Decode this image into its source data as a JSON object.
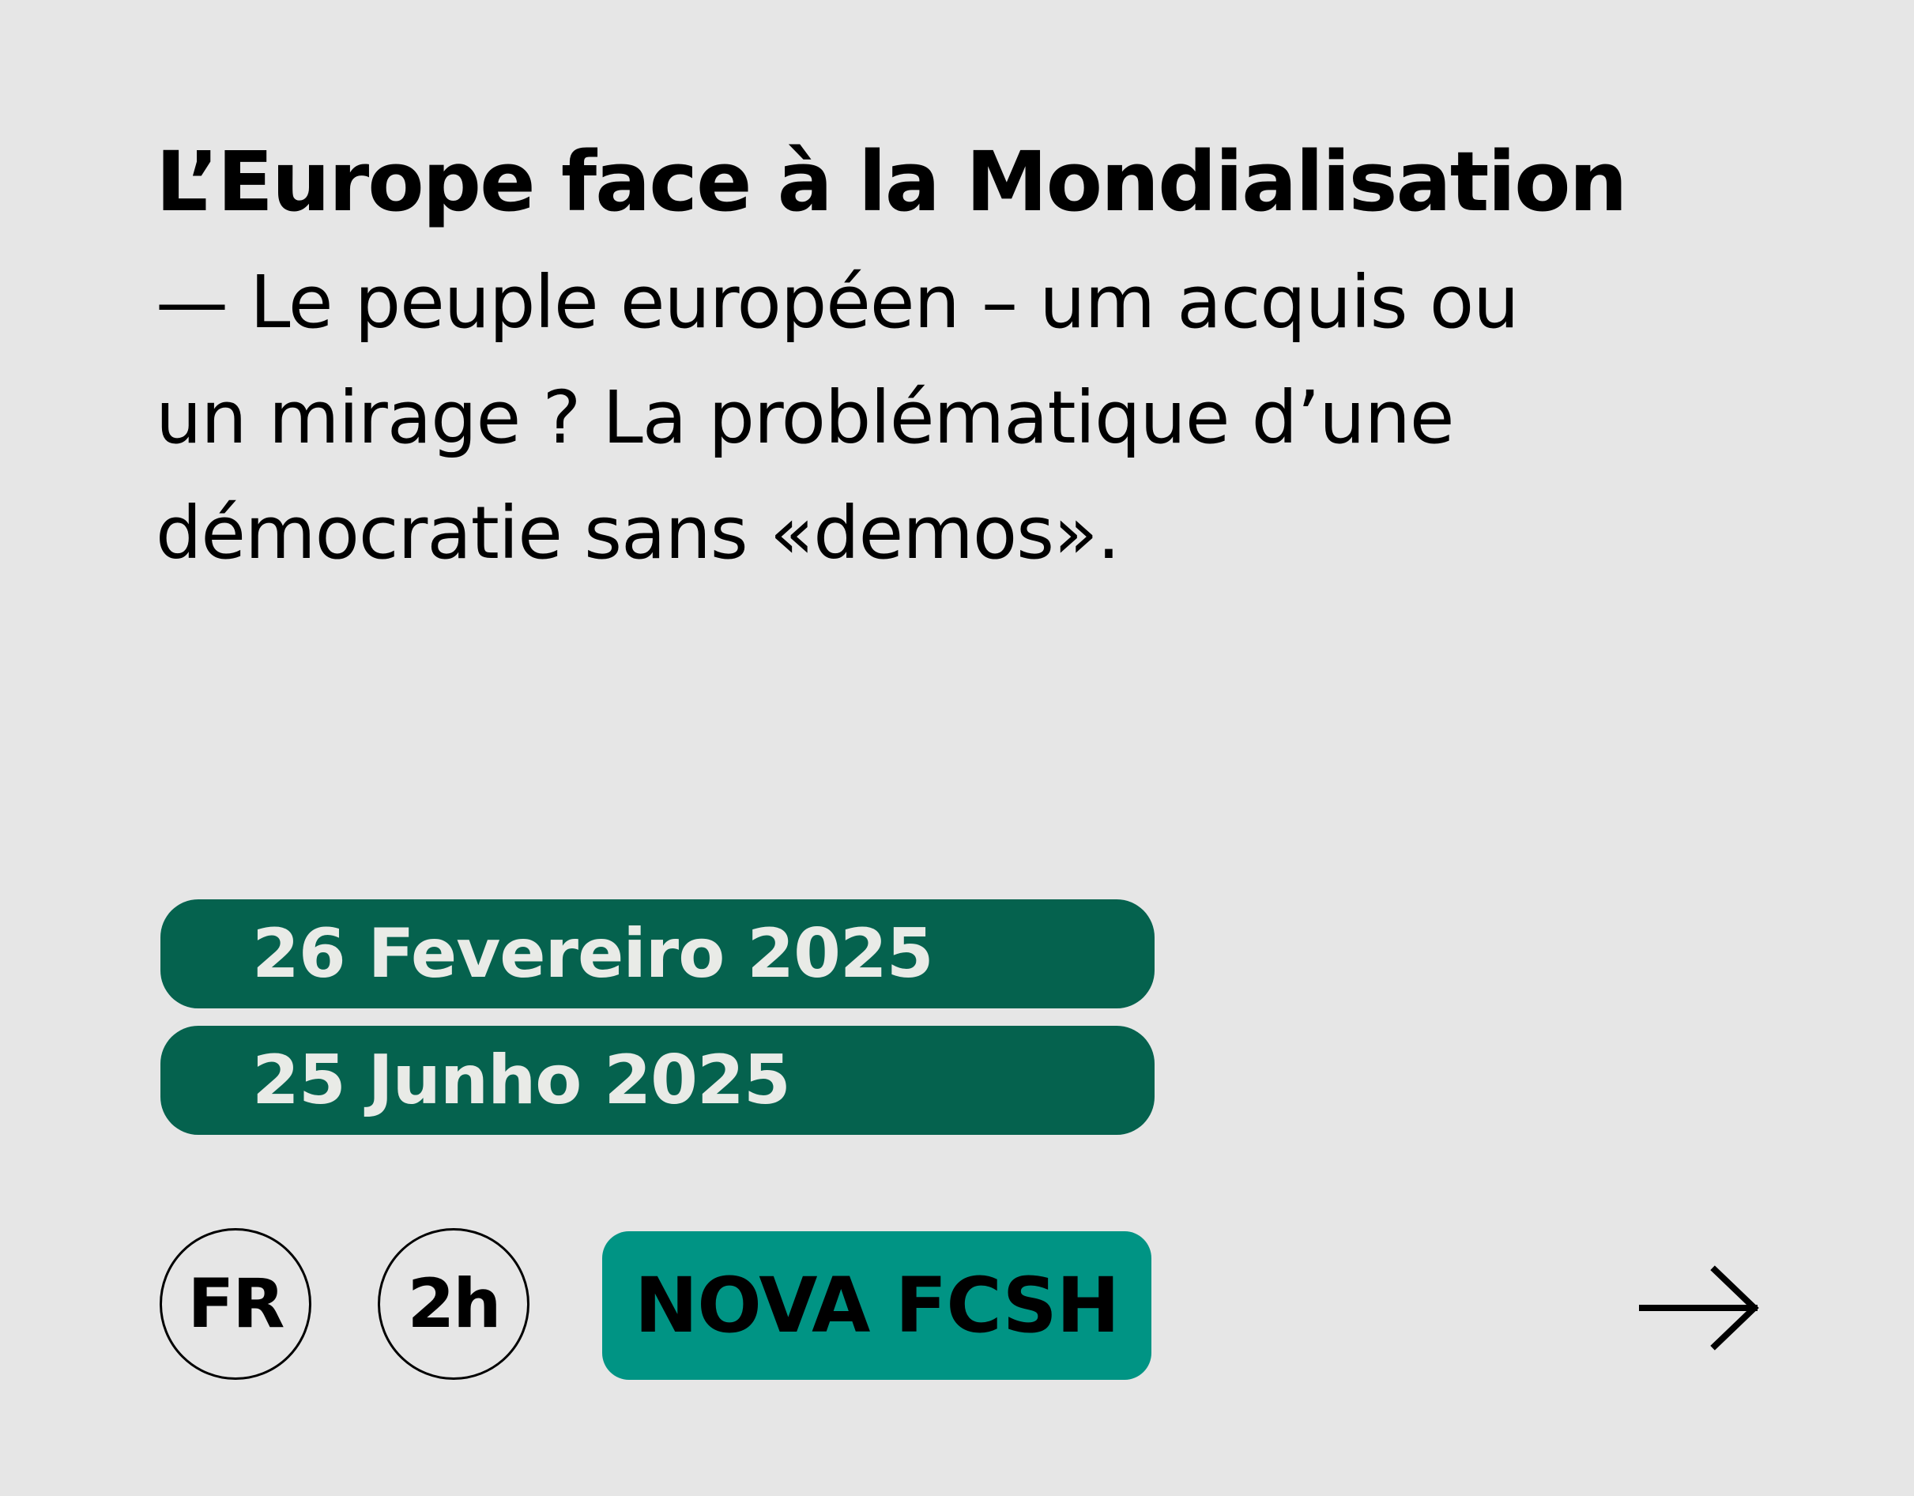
{
  "event": {
    "title": "L’Europe face à la Mondialisation",
    "subtitle_lines": [
      "— Le peuple européen – um acquis ou",
      "un mirage ? La problématique d’une",
      "démocratie sans «demos»."
    ],
    "dates": [
      "26 Fevereiro 2025",
      "25 Junho 2025"
    ],
    "language": "FR",
    "duration": "2h",
    "venue": "NOVA FCSH",
    "arrow_icon": "arrow-right-icon"
  },
  "colors": {
    "background": "#e6e6e6",
    "date_pill": "#05624e",
    "date_text": "#e9ebe7",
    "venue_pill": "#009484"
  }
}
